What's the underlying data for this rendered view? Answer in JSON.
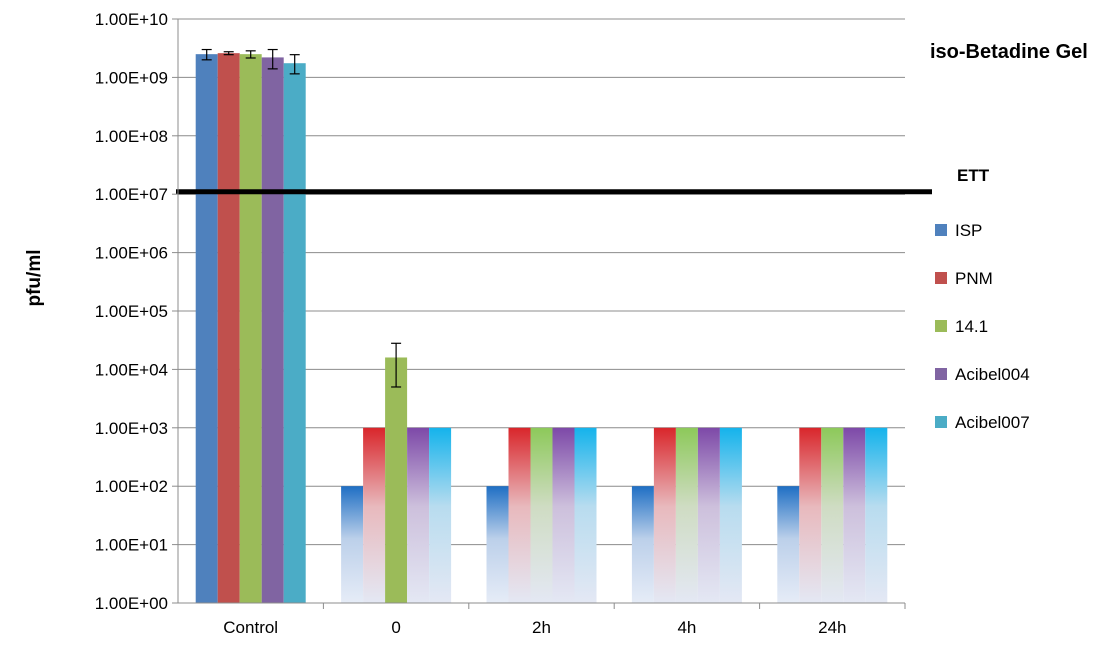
{
  "chart_data": {
    "type": "bar",
    "title": "iso-Betadine Gel",
    "xlabel": "",
    "ylabel": "pfu/ml",
    "yscale": "log",
    "ylim": [
      1,
      10000000000
    ],
    "y_ticks": [
      "1.00E+00",
      "1.00E+01",
      "1.00E+02",
      "1.00E+03",
      "1.00E+04",
      "1.00E+05",
      "1.00E+06",
      "1.00E+07",
      "1.00E+08",
      "1.00E+09",
      "1.00E+10"
    ],
    "grid": true,
    "legend_position": "right",
    "categories": [
      "Control",
      "0",
      "2h",
      "4h",
      "24h"
    ],
    "series": [
      {
        "name": "ISP",
        "color": "#4f81bd",
        "values": [
          2500000000,
          100,
          100,
          100,
          100
        ],
        "error_low": [
          2000000000,
          null,
          null,
          null,
          null
        ],
        "error_high": [
          3000000000,
          null,
          null,
          null,
          null
        ]
      },
      {
        "name": "PNM",
        "color": "#c0504d",
        "values": [
          2600000000,
          1000,
          1000,
          1000,
          1000
        ],
        "error_low": [
          2450000000,
          null,
          null,
          null,
          null
        ],
        "error_high": [
          2750000000,
          null,
          null,
          null,
          null
        ]
      },
      {
        "name": "14.1",
        "color": "#9bbb59",
        "values": [
          2500000000,
          16000,
          1000,
          1000,
          1000
        ],
        "error_low": [
          2150000000,
          5000,
          null,
          null,
          null
        ],
        "error_high": [
          2850000000,
          28000,
          null,
          null,
          null
        ]
      },
      {
        "name": "Acibel004",
        "color": "#8064a2",
        "values": [
          2200000000,
          1000,
          1000,
          1000,
          1000
        ],
        "error_low": [
          1400000000,
          null,
          null,
          null,
          null
        ],
        "error_high": [
          3000000000,
          null,
          null,
          null,
          null
        ]
      },
      {
        "name": "Acibel007",
        "color": "#4bacc6",
        "values": [
          1750000000,
          1000,
          1000,
          1000,
          1000
        ],
        "error_low": [
          1150000000,
          null,
          null,
          null,
          null
        ],
        "error_high": [
          2450000000,
          null,
          null,
          null,
          null
        ]
      }
    ],
    "reference_line": {
      "label": "ETT",
      "value": 11000000
    }
  }
}
